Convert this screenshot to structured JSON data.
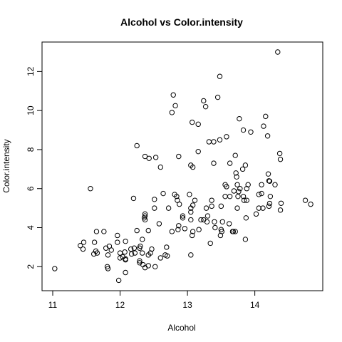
{
  "chart_data": {
    "type": "scatter",
    "title": "Alcohol vs Color.intensity",
    "xlabel": "Alcohol",
    "ylabel": "Color.intensity",
    "xlim": [
      11.0,
      14.85
    ],
    "ylim": [
      1.28,
      13.0
    ],
    "xticks": [
      11,
      12,
      13,
      14
    ],
    "yticks": [
      2,
      4,
      6,
      8,
      10,
      12
    ],
    "grid": false,
    "points": [
      [
        11.03,
        1.9
      ],
      [
        11.41,
        3.08
      ],
      [
        11.45,
        2.9
      ],
      [
        11.46,
        3.25
      ],
      [
        11.56,
        6.0
      ],
      [
        11.61,
        2.65
      ],
      [
        11.62,
        3.25
      ],
      [
        11.64,
        2.8
      ],
      [
        11.65,
        3.8
      ],
      [
        11.66,
        2.7
      ],
      [
        11.76,
        3.8
      ],
      [
        11.79,
        2.95
      ],
      [
        11.81,
        2.0
      ],
      [
        11.82,
        2.6
      ],
      [
        11.82,
        1.9
      ],
      [
        11.84,
        3.05
      ],
      [
        11.87,
        2.85
      ],
      [
        11.96,
        3.6
      ],
      [
        11.96,
        3.25
      ],
      [
        11.98,
        1.3
      ],
      [
        12.0,
        2.45
      ],
      [
        12.0,
        2.7
      ],
      [
        12.04,
        2.5
      ],
      [
        12.07,
        2.75
      ],
      [
        12.08,
        1.7
      ],
      [
        12.08,
        2.4
      ],
      [
        12.08,
        2.35
      ],
      [
        12.08,
        3.3
      ],
      [
        12.16,
        2.9
      ],
      [
        12.17,
        2.65
      ],
      [
        12.2,
        5.5
      ],
      [
        12.21,
        2.95
      ],
      [
        12.22,
        2.7
      ],
      [
        12.25,
        8.2
      ],
      [
        12.25,
        3.85
      ],
      [
        12.29,
        2.2
      ],
      [
        12.29,
        2.3
      ],
      [
        12.29,
        2.95
      ],
      [
        12.3,
        3.05
      ],
      [
        12.33,
        3.4
      ],
      [
        12.33,
        2.7
      ],
      [
        12.34,
        2.1
      ],
      [
        12.36,
        4.5
      ],
      [
        12.37,
        1.95
      ],
      [
        12.37,
        7.65
      ],
      [
        12.37,
        4.4
      ],
      [
        12.37,
        4.6
      ],
      [
        12.37,
        4.7
      ],
      [
        12.42,
        3.85
      ],
      [
        12.42,
        2.6
      ],
      [
        12.42,
        2.05
      ],
      [
        12.43,
        7.55
      ],
      [
        12.45,
        2.7
      ],
      [
        12.47,
        2.9
      ],
      [
        12.51,
        5.45
      ],
      [
        12.51,
        5.0
      ],
      [
        12.52,
        2.0
      ],
      [
        12.53,
        7.6
      ],
      [
        12.58,
        4.2
      ],
      [
        12.6,
        2.45
      ],
      [
        12.6,
        7.1
      ],
      [
        12.64,
        5.75
      ],
      [
        12.67,
        2.6
      ],
      [
        12.69,
        3.0
      ],
      [
        12.7,
        2.55
      ],
      [
        12.72,
        5.0
      ],
      [
        12.77,
        3.8
      ],
      [
        12.77,
        9.9
      ],
      [
        12.79,
        10.8
      ],
      [
        12.81,
        5.7
      ],
      [
        12.82,
        10.25
      ],
      [
        12.84,
        5.6
      ],
      [
        12.85,
        5.4
      ],
      [
        12.86,
        3.9
      ],
      [
        12.87,
        4.1
      ],
      [
        12.87,
        7.65
      ],
      [
        12.88,
        5.2
      ],
      [
        12.93,
        4.5
      ],
      [
        12.93,
        4.6
      ],
      [
        12.96,
        3.95
      ],
      [
        13.03,
        5.7
      ],
      [
        13.05,
        4.4
      ],
      [
        13.05,
        5.0
      ],
      [
        13.05,
        7.2
      ],
      [
        13.05,
        2.6
      ],
      [
        13.05,
        4.8
      ],
      [
        13.07,
        3.6
      ],
      [
        13.07,
        9.4
      ],
      [
        13.08,
        3.8
      ],
      [
        13.08,
        5.15
      ],
      [
        13.08,
        7.1
      ],
      [
        13.11,
        5.4
      ],
      [
        13.16,
        9.3
      ],
      [
        13.16,
        7.9
      ],
      [
        13.17,
        3.9
      ],
      [
        13.2,
        4.4
      ],
      [
        13.24,
        4.4
      ],
      [
        13.24,
        10.5
      ],
      [
        13.27,
        10.2
      ],
      [
        13.28,
        5.0
      ],
      [
        13.29,
        4.3
      ],
      [
        13.3,
        4.6
      ],
      [
        13.32,
        8.4
      ],
      [
        13.34,
        3.2
      ],
      [
        13.36,
        5.1
      ],
      [
        13.36,
        5.4
      ],
      [
        13.39,
        8.4
      ],
      [
        13.39,
        7.3
      ],
      [
        13.4,
        4.3
      ],
      [
        13.41,
        4.0
      ],
      [
        13.45,
        10.68
      ],
      [
        13.48,
        8.5
      ],
      [
        13.48,
        11.75
      ],
      [
        13.49,
        3.6
      ],
      [
        13.5,
        5.1
      ],
      [
        13.5,
        3.9
      ],
      [
        13.51,
        3.8
      ],
      [
        13.52,
        4.3
      ],
      [
        13.56,
        6.2
      ],
      [
        13.56,
        5.6
      ],
      [
        13.58,
        8.66
      ],
      [
        13.58,
        6.1
      ],
      [
        13.62,
        4.2
      ],
      [
        13.63,
        7.3
      ],
      [
        13.63,
        5.6
      ],
      [
        13.67,
        3.8
      ],
      [
        13.68,
        3.8
      ],
      [
        13.69,
        5.88
      ],
      [
        13.71,
        7.7
      ],
      [
        13.71,
        3.8
      ],
      [
        13.72,
        6.8
      ],
      [
        13.73,
        6.6
      ],
      [
        13.74,
        6.2
      ],
      [
        13.74,
        5.0
      ],
      [
        13.75,
        5.6
      ],
      [
        13.76,
        5.85
      ],
      [
        13.77,
        9.58
      ],
      [
        13.78,
        6.0
      ],
      [
        13.82,
        7.0
      ],
      [
        13.83,
        5.6
      ],
      [
        13.83,
        9.0
      ],
      [
        13.84,
        5.4
      ],
      [
        13.86,
        7.2
      ],
      [
        13.86,
        3.4
      ],
      [
        13.87,
        4.5
      ],
      [
        13.88,
        5.4
      ],
      [
        13.88,
        6.0
      ],
      [
        13.9,
        6.2
      ],
      [
        13.94,
        8.9
      ],
      [
        14.02,
        4.7
      ],
      [
        14.06,
        5.0
      ],
      [
        14.06,
        5.7
      ],
      [
        14.1,
        5.75
      ],
      [
        14.1,
        6.2
      ],
      [
        14.12,
        5.0
      ],
      [
        14.13,
        9.2
      ],
      [
        14.16,
        9.7
      ],
      [
        14.19,
        8.7
      ],
      [
        14.2,
        6.75
      ],
      [
        14.21,
        5.1
      ],
      [
        14.21,
        6.4
      ],
      [
        14.22,
        5.24
      ],
      [
        14.22,
        6.38
      ],
      [
        14.23,
        5.6
      ],
      [
        14.3,
        6.2
      ],
      [
        14.34,
        13.0
      ],
      [
        14.37,
        7.8
      ],
      [
        14.38,
        4.9
      ],
      [
        14.38,
        7.5
      ],
      [
        14.39,
        5.25
      ],
      [
        14.75,
        5.4
      ],
      [
        14.83,
        5.2
      ]
    ]
  }
}
